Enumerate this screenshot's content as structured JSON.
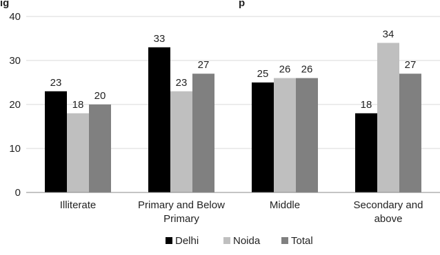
{
  "clipped_title": "ig                                    p",
  "chart_data": {
    "type": "bar",
    "categories": [
      [
        "Illiterate"
      ],
      [
        "Primary and Below",
        "Primary"
      ],
      [
        "Middle"
      ],
      [
        "Secondary and",
        "above"
      ]
    ],
    "series": [
      {
        "name": "Delhi",
        "color": "#000000",
        "values": [
          23,
          33,
          25,
          18
        ]
      },
      {
        "name": "Noida",
        "color": "#bfbfbf",
        "values": [
          18,
          23,
          26,
          34
        ]
      },
      {
        "name": "Total",
        "color": "#808080",
        "values": [
          20,
          27,
          26,
          27
        ]
      }
    ],
    "ylim": [
      0,
      40
    ],
    "yticks": [
      0,
      10,
      20,
      30,
      40
    ],
    "grid": true,
    "legend_position": "bottom"
  }
}
